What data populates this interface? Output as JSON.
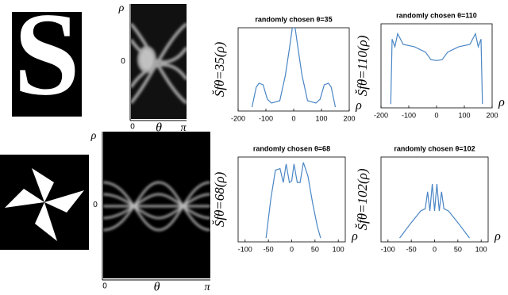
{
  "shape_image": {
    "letter": "S"
  },
  "sinograms": [
    {
      "y_label": "ρ",
      "y_tick": "0",
      "x_label": "θ",
      "x_tick_start": "0",
      "x_tick_end": "π"
    },
    {
      "y_label": "ρ",
      "y_tick": "0",
      "x_label": "θ",
      "x_tick_start": "0",
      "x_tick_end": "π"
    }
  ],
  "chart_data": [
    {
      "type": "line",
      "title": "randomly chosen θ=35",
      "y_label": "Šfθ=35(ρ)",
      "x_label": "ρ",
      "x": [
        -150,
        -135,
        -125,
        -110,
        -95,
        -80,
        -50,
        -30,
        -15,
        -5,
        0,
        5,
        15,
        30,
        50,
        80,
        95,
        110,
        125,
        135,
        150
      ],
      "series": [
        {
          "color": "#4a86c5",
          "values": [
            0,
            25,
            30,
            28,
            10,
            5,
            8,
            40,
            75,
            100,
            100,
            100,
            75,
            40,
            8,
            5,
            10,
            28,
            30,
            25,
            0
          ]
        }
      ],
      "xlim": [
        -200,
        200
      ],
      "xticks": [
        -200,
        -100,
        0,
        100,
        200
      ],
      "ylim": [
        -5,
        100
      ]
    },
    {
      "type": "line",
      "title": "randomly chosen θ=110",
      "y_label": "Šfθ=110(ρ)",
      "x_label": "ρ",
      "x": [
        -165,
        -160,
        -150,
        -140,
        -120,
        -80,
        -40,
        -20,
        0,
        20,
        40,
        80,
        120,
        140,
        150,
        160,
        165
      ],
      "series": [
        {
          "color": "#4a86c5",
          "values": [
            0,
            85,
            75,
            92,
            78,
            75,
            68,
            58,
            57,
            58,
            68,
            75,
            78,
            92,
            75,
            85,
            0
          ]
        }
      ],
      "xlim": [
        -200,
        200
      ],
      "xticks": [
        -200,
        -100,
        0,
        100,
        200
      ],
      "ylim": [
        -5,
        105
      ]
    },
    {
      "type": "line",
      "title": "randomly chosen θ=68",
      "y_label": "Šfθ=68(ρ)",
      "x_label": "ρ",
      "x": [
        -55,
        -45,
        -35,
        -25,
        -18,
        -12,
        -5,
        0,
        5,
        12,
        18,
        25,
        35,
        45,
        55,
        62
      ],
      "series": [
        {
          "color": "#4a86c5",
          "values": [
            0,
            50,
            88,
            90,
            72,
            96,
            72,
            74,
            96,
            72,
            72,
            98,
            80,
            45,
            15,
            0
          ]
        }
      ],
      "xlim": [
        -115,
        115
      ],
      "xticks": [
        -100,
        -50,
        0,
        50,
        100
      ],
      "ylim": [
        -5,
        105
      ]
    },
    {
      "type": "line",
      "title": "randomly chosen θ=102",
      "y_label": "Šfθ=102(ρ)",
      "x_label": "ρ",
      "x": [
        -75,
        -50,
        -30,
        -20,
        -15,
        -10,
        -5,
        0,
        5,
        10,
        15,
        20,
        30,
        50,
        75
      ],
      "series": [
        {
          "color": "#4a86c5",
          "values": [
            0,
            20,
            35,
            38,
            60,
            35,
            70,
            35,
            70,
            35,
            60,
            38,
            35,
            20,
            0
          ]
        }
      ],
      "xlim": [
        -115,
        115
      ],
      "xticks": [
        -100,
        -50,
        0,
        50,
        100
      ],
      "ylim": [
        -5,
        105
      ]
    }
  ]
}
